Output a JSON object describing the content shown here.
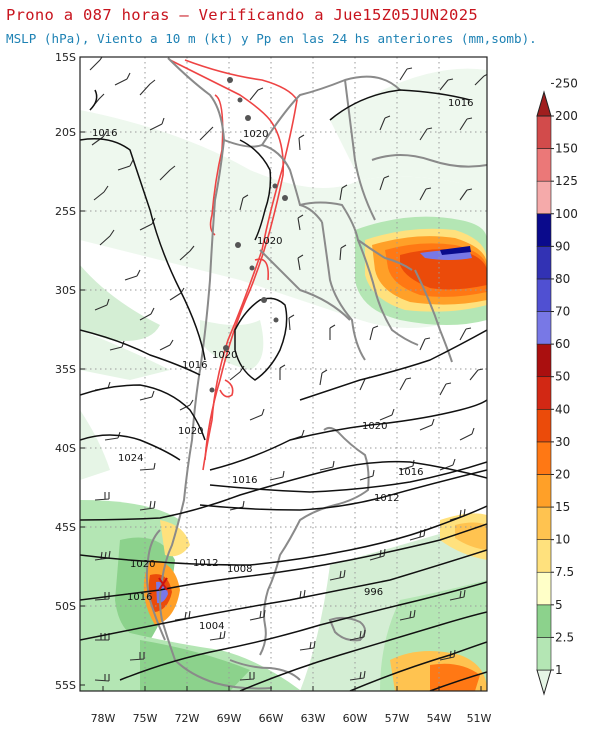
{
  "title": "Prono a 087 horas — Verificando a Jue15Z05JUN2025",
  "subtitle": "MSLP (hPa), Viento a 10 m (kt) y Pp en las 24 hs anteriores (mm,somb).",
  "map": {
    "lat_labels": [
      "15S",
      "20S",
      "25S",
      "30S",
      "35S",
      "40S",
      "45S",
      "50S",
      "55S"
    ],
    "lon_labels": [
      "78W",
      "75W",
      "72W",
      "69W",
      "66W",
      "63W",
      "60W",
      "57W",
      "54W",
      "51W"
    ],
    "isobar_labels": [
      {
        "text": "1016",
        "id": "n1"
      },
      {
        "text": "1020",
        "id": "n2"
      },
      {
        "text": "1016",
        "id": "ne"
      },
      {
        "text": "1020",
        "id": "c1"
      },
      {
        "text": "1016",
        "id": "c2"
      },
      {
        "text": "1020",
        "id": "c3"
      },
      {
        "text": "1020",
        "id": "w1"
      },
      {
        "text": "1024",
        "id": "w2"
      },
      {
        "text": "1016",
        "id": "c4"
      },
      {
        "text": "1020",
        "id": "e1"
      },
      {
        "text": "1016",
        "id": "e2"
      },
      {
        "text": "1012",
        "id": "e3"
      },
      {
        "text": "1020",
        "id": "s1"
      },
      {
        "text": "1016",
        "id": "s2"
      },
      {
        "text": "1012",
        "id": "s3"
      },
      {
        "text": "1008",
        "id": "s4"
      },
      {
        "text": "996",
        "id": "s5"
      },
      {
        "text": "1004",
        "id": "s6"
      }
    ]
  },
  "colorbar": {
    "levels": [
      "1",
      "2.5",
      "5",
      "7.5",
      "10",
      "15",
      "20",
      "30",
      "40",
      "50",
      "60",
      "70",
      "80",
      "90",
      "100",
      "125",
      "150",
      "200",
      "250"
    ],
    "colors": [
      "#e6f5e6",
      "#b4e6b4",
      "#8cd28c",
      "#ffffc8",
      "#ffe17d",
      "#ffc350",
      "#ffa028",
      "#ff7814",
      "#eb4b0a",
      "#d22814",
      "#aa0f0f",
      "#7878e6",
      "#5050d2",
      "#3232b4",
      "#0a0a8c",
      "#f5aaaa",
      "#eb7878",
      "#d24b4b",
      "#a01e1e"
    ]
  }
}
